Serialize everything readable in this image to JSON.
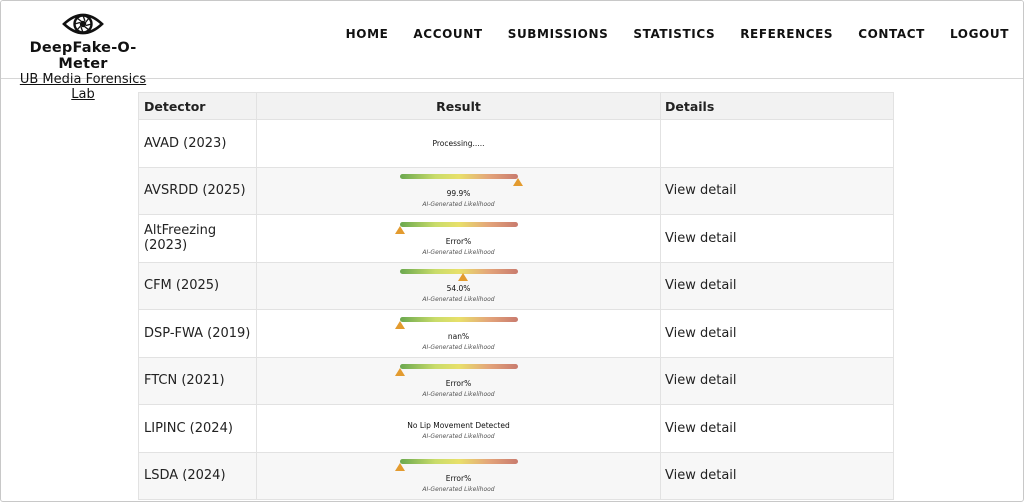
{
  "brand": {
    "name": "DeepFake-O-Meter",
    "lab": "UB Media Forensics Lab",
    "logo_icon": "eye-aperture-icon"
  },
  "nav": [
    "HOME",
    "ACCOUNT",
    "SUBMISSIONS",
    "STATISTICS",
    "REFERENCES",
    "CONTACT",
    "LOGOUT"
  ],
  "table": {
    "headers": [
      "Detector",
      "Result",
      "Details"
    ],
    "caption": "AI-Generated Likelihood",
    "rows": [
      {
        "detector": "AVAD (2023)",
        "result": "Processing.....",
        "gauge": false,
        "details": ""
      },
      {
        "detector": "AVSRDD (2025)",
        "result": "99.9%",
        "gauge": true,
        "level": 1.0,
        "details": "View detail"
      },
      {
        "detector": "AltFreezing (2023)",
        "result": "Error%",
        "gauge": true,
        "level": 0.0,
        "details": "View detail"
      },
      {
        "detector": "CFM (2025)",
        "result": "54.0%",
        "gauge": true,
        "level": 0.54,
        "details": "View detail"
      },
      {
        "detector": "DSP-FWA (2019)",
        "result": "nan%",
        "gauge": true,
        "level": 0.0,
        "details": "View detail"
      },
      {
        "detector": "FTCN (2021)",
        "result": "Error%",
        "gauge": true,
        "level": 0.0,
        "details": "View detail"
      },
      {
        "detector": "LIPINC (2024)",
        "result": "No Lip Movement Detected",
        "gauge": false,
        "caption_only": true,
        "details": "View detail"
      },
      {
        "detector": "LSDA (2024)",
        "result": "Error%",
        "gauge": true,
        "level": 0.0,
        "details": "View detail"
      }
    ]
  },
  "colors": {
    "marker": "#e39b2f",
    "gauge_low": "#6aa84f",
    "gauge_mid": "#e8e06a",
    "gauge_high": "#c97b6e"
  }
}
